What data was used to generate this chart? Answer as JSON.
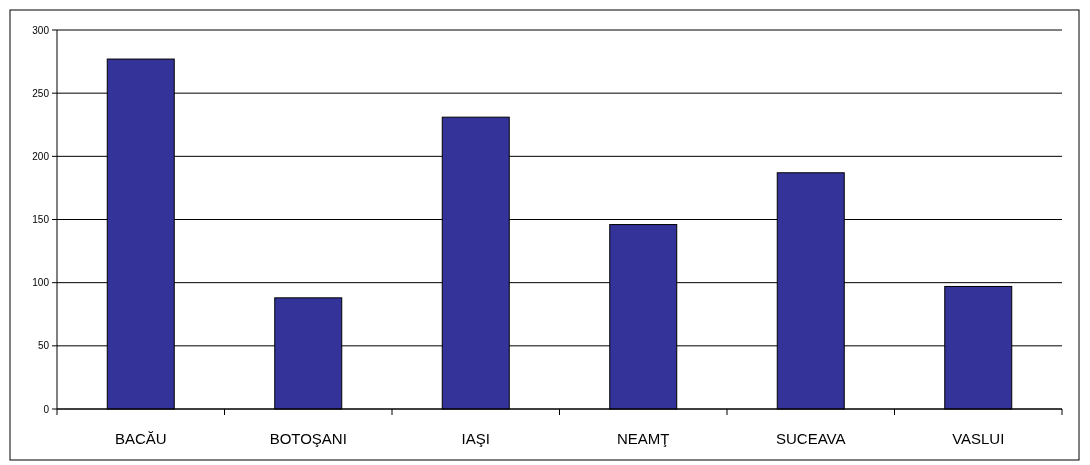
{
  "chart_data": {
    "type": "bar",
    "categories": [
      "BACĂU",
      "BOTOŞANI",
      "IAŞI",
      "NEAMŢ",
      "SUCEAVA",
      "VASLUI"
    ],
    "values": [
      277,
      88,
      231,
      146,
      187,
      97
    ],
    "color": "#333399",
    "ylim": [
      0,
      300
    ],
    "yticks": [
      0,
      50,
      100,
      150,
      200,
      250,
      300
    ],
    "grid": "y"
  }
}
